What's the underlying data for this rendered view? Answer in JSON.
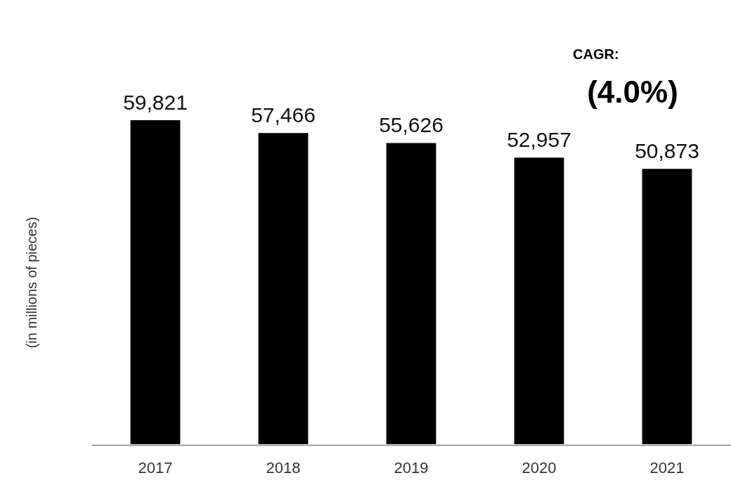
{
  "chart_data": {
    "type": "bar",
    "ylabel": "(in millions of pieces)",
    "categories": [
      "2017",
      "2018",
      "2019",
      "2020",
      "2021"
    ],
    "values": [
      59821,
      57466,
      55626,
      52957,
      50873
    ],
    "value_labels": [
      "59,821",
      "57,466",
      "55,626",
      "52,957",
      "50,873"
    ],
    "color": "#000000",
    "tick_labels": "x",
    "grid": false,
    "annotations": [
      "CAGR:",
      "(4.0%)"
    ]
  }
}
